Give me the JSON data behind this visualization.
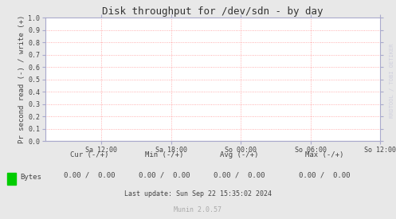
{
  "title": "Disk throughput for /dev/sdn - by day",
  "ylabel": "Pr second read (-) / write (+)",
  "background_color": "#e8e8e8",
  "plot_bg_color": "#ffffff",
  "grid_color": "#ff9999",
  "border_color": "#aaaacc",
  "ylim": [
    0.0,
    1.0
  ],
  "yticks": [
    0.0,
    0.1,
    0.2,
    0.3,
    0.4,
    0.5,
    0.6,
    0.7,
    0.8,
    0.9,
    1.0
  ],
  "xtick_labels": [
    "Sa 12:00",
    "Sa 18:00",
    "So 00:00",
    "So 06:00",
    "So 12:00"
  ],
  "legend_label": "Bytes",
  "legend_color": "#00cc00",
  "cur_label": "Cur (-/+)",
  "min_label": "Min (-/+)",
  "avg_label": "Avg (-/+)",
  "max_label": "Max (-/+)",
  "cur_val": "0.00 /  0.00",
  "min_val": "0.00 /  0.00",
  "avg_val": "0.00 /  0.00",
  "max_val": "0.00 /  0.00",
  "last_update": "Last update: Sun Sep 22 15:35:02 2024",
  "munin_version": "Munin 2.0.57",
  "watermark": "RRDTOOL / TOBI OETIKER",
  "title_fontsize": 9,
  "axis_fontsize": 6.5,
  "tick_fontsize": 6,
  "legend_fontsize": 6.5,
  "info_fontsize": 6,
  "watermark_fontsize": 5
}
